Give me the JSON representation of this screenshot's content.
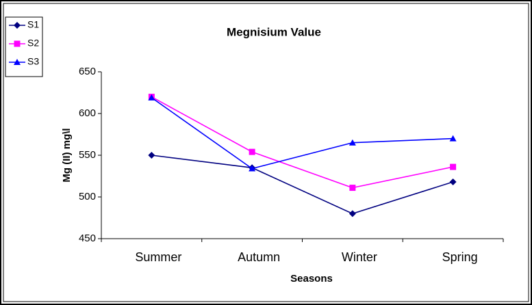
{
  "chart_data": {
    "type": "line",
    "title": "Megnisium Value",
    "x_label": "Seasons",
    "y_label": "Mg (II) mg\\l",
    "categories": [
      "Summer",
      "Autumn",
      "Winter",
      "Spring"
    ],
    "series": [
      {
        "name": "S1",
        "color": "#000080",
        "marker": "diamond",
        "values": [
          550,
          535,
          480,
          518
        ]
      },
      {
        "name": "S2",
        "color": "#ff00ff",
        "marker": "square",
        "values": [
          620,
          554,
          511,
          536
        ]
      },
      {
        "name": "S3",
        "color": "#0000ff",
        "marker": "triangle",
        "values": [
          619,
          534,
          565,
          570
        ]
      }
    ],
    "ylim": [
      450,
      650
    ],
    "yticks": [
      450,
      500,
      550,
      600,
      650
    ],
    "grid": false,
    "legend": "top-left"
  }
}
